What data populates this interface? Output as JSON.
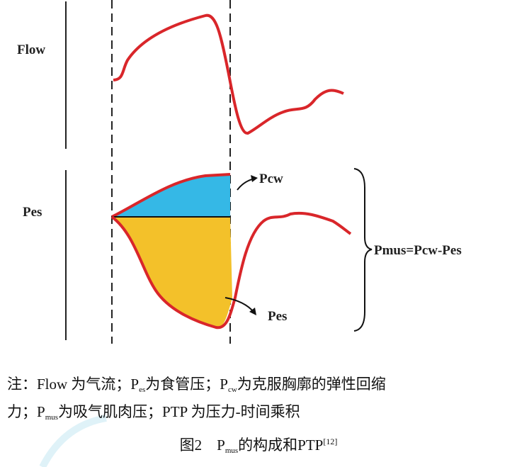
{
  "figure": {
    "labels": {
      "flow": "Flow",
      "pes": "Pes",
      "pcw_arrow": "Pcw",
      "pes_arrow": "Pes",
      "pmus": "Pmus=Pcw-Pes"
    },
    "note": {
      "line1": [
        "注：Flow 为气流；P",
        "es",
        "为食管压；P",
        "cw",
        "为克服胸廓的弹性回缩"
      ],
      "line2": [
        "力；P",
        "mus",
        "为吸气肌肉压；PTP 为压力-时间乘积"
      ]
    },
    "caption": [
      "图2",
      "P",
      "mus",
      "的构成和PTP",
      "[12]"
    ]
  }
}
